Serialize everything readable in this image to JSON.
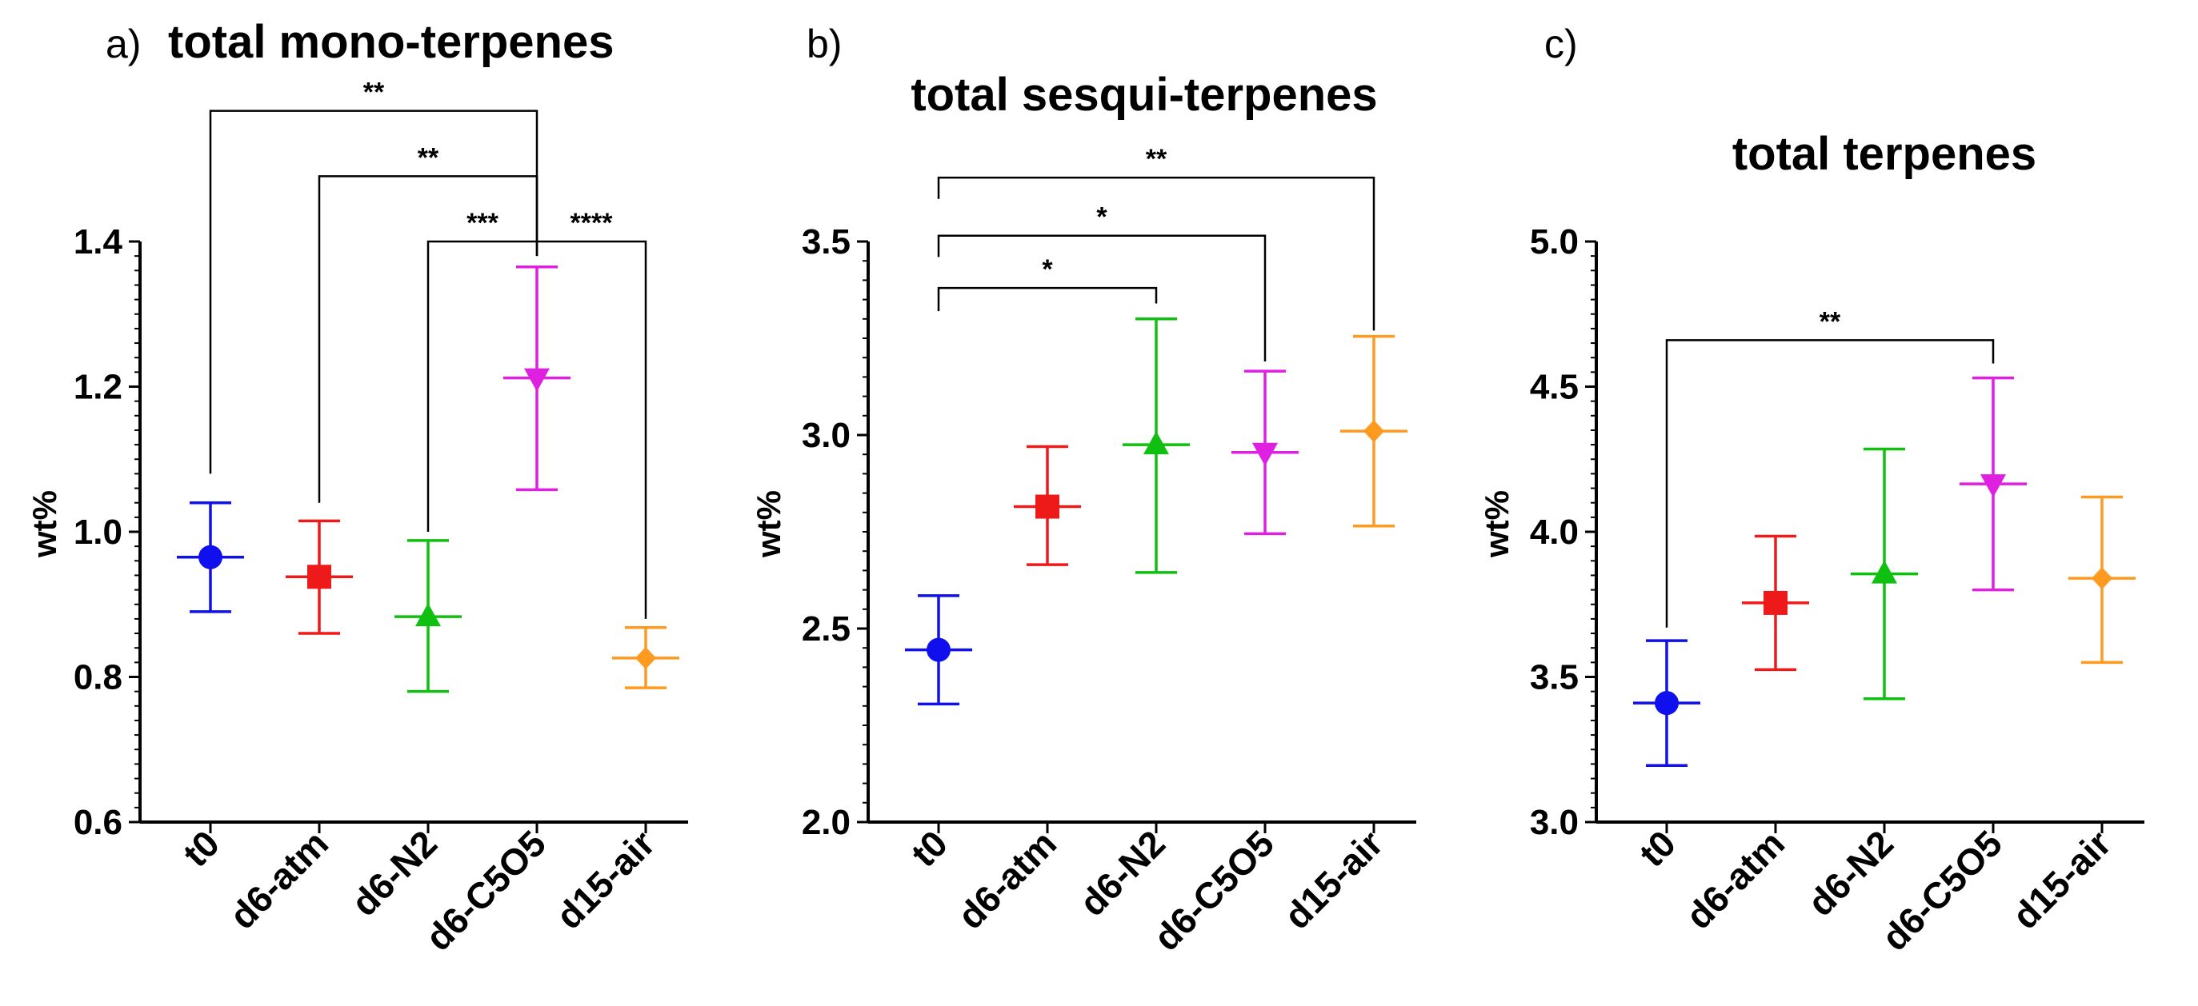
{
  "chart_data": [
    {
      "type": "scatter",
      "panel_letter": "a)",
      "title": "total mono-terpenes",
      "ylabel": "wt%",
      "ylim": [
        0.6,
        1.4
      ],
      "yticks": [
        "0.6",
        "0.8",
        "1.0",
        "1.2",
        "1.4"
      ],
      "categories": [
        "t0",
        "d6-atm",
        "d6-N2",
        "d6-C5O5",
        "d15-air"
      ],
      "points": [
        {
          "category": "t0",
          "mean": 0.965,
          "low": 0.89,
          "high": 1.04,
          "color": "#1010ee",
          "marker": "circle"
        },
        {
          "category": "d6-atm",
          "mean": 0.938,
          "low": 0.86,
          "high": 1.015,
          "color": "#ee1a1a",
          "marker": "square"
        },
        {
          "category": "d6-N2",
          "mean": 0.883,
          "low": 0.78,
          "high": 0.988,
          "color": "#10c010",
          "marker": "triangle-up"
        },
        {
          "category": "d6-C5O5",
          "mean": 1.212,
          "low": 1.058,
          "high": 1.365,
          "color": "#e020e0",
          "marker": "triangle-down"
        },
        {
          "category": "d15-air",
          "mean": 0.826,
          "low": 0.785,
          "high": 0.868,
          "color": "#ff9a20",
          "marker": "diamond"
        }
      ],
      "significance": [
        {
          "from": "t0",
          "to": "d6-C5O5",
          "label": "**",
          "y": 1.58,
          "from_end": 1.08,
          "to_end": 1.4
        },
        {
          "from": "d6-atm",
          "to": "d6-C5O5",
          "label": "**",
          "y": 1.49,
          "from_end": 1.04,
          "to_end": 1.4
        },
        {
          "from": "d6-N2",
          "to": "d6-C5O5",
          "label": "***",
          "y": 1.4,
          "from_end": 1.0,
          "to_end": 1.38
        },
        {
          "from": "d6-C5O5",
          "to": "d15-air",
          "label": "****",
          "y": 1.4,
          "from_end": 1.38,
          "to_end": 0.88
        }
      ]
    },
    {
      "type": "scatter",
      "panel_letter": "b)",
      "title": "total sesqui-terpenes",
      "ylabel": "wt%",
      "ylim": [
        2.0,
        3.5
      ],
      "yticks": [
        "2.0",
        "2.5",
        "3.0",
        "3.5"
      ],
      "categories": [
        "t0",
        "d6-atm",
        "d6-N2",
        "d6-C5O5",
        "d15-air"
      ],
      "points": [
        {
          "category": "t0",
          "mean": 2.445,
          "low": 2.305,
          "high": 2.585,
          "color": "#1010ee",
          "marker": "circle"
        },
        {
          "category": "d6-atm",
          "mean": 2.815,
          "low": 2.665,
          "high": 2.97,
          "color": "#ee1a1a",
          "marker": "square"
        },
        {
          "category": "d6-N2",
          "mean": 2.975,
          "low": 2.645,
          "high": 3.3,
          "color": "#10c010",
          "marker": "triangle-up"
        },
        {
          "category": "d6-C5O5",
          "mean": 2.955,
          "low": 2.745,
          "high": 3.165,
          "color": "#e020e0",
          "marker": "triangle-down"
        },
        {
          "category": "d15-air",
          "mean": 3.01,
          "low": 2.765,
          "high": 3.255,
          "color": "#ff9a20",
          "marker": "diamond"
        }
      ],
      "significance": [
        {
          "from": "t0",
          "to": "d15-air",
          "label": "**",
          "y": 3.665,
          "from_end": 3.61,
          "to_end": 3.27
        },
        {
          "from": "t0",
          "to": "d6-C5O5",
          "label": "*",
          "y": 3.515,
          "from_end": 3.46,
          "to_end": 3.19
        },
        {
          "from": "t0",
          "to": "d6-N2",
          "label": "*",
          "y": 3.38,
          "from_end": 3.32,
          "to_end": 3.34
        }
      ]
    },
    {
      "type": "scatter",
      "panel_letter": "c)",
      "title": "total terpenes",
      "ylabel": "wt%",
      "ylim": [
        3.0,
        5.0
      ],
      "yticks": [
        "3.0",
        "3.5",
        "4.0",
        "4.5",
        "5.0"
      ],
      "categories": [
        "t0",
        "d6-atm",
        "d6-N2",
        "d6-C5O5",
        "d15-air"
      ],
      "points": [
        {
          "category": "t0",
          "mean": 3.41,
          "low": 3.195,
          "high": 3.625,
          "color": "#1010ee",
          "marker": "circle"
        },
        {
          "category": "d6-atm",
          "mean": 3.755,
          "low": 3.525,
          "high": 3.985,
          "color": "#ee1a1a",
          "marker": "square"
        },
        {
          "category": "d6-N2",
          "mean": 3.855,
          "low": 3.425,
          "high": 4.285,
          "color": "#10c010",
          "marker": "triangle-up"
        },
        {
          "category": "d6-C5O5",
          "mean": 4.165,
          "low": 3.8,
          "high": 4.53,
          "color": "#e020e0",
          "marker": "triangle-down"
        },
        {
          "category": "d15-air",
          "mean": 3.84,
          "low": 3.55,
          "high": 4.12,
          "color": "#ff9a20",
          "marker": "diamond"
        }
      ],
      "significance": [
        {
          "from": "t0",
          "to": "d6-C5O5",
          "label": "**",
          "y": 4.66,
          "from_end": 3.67,
          "to_end": 4.58
        }
      ]
    }
  ]
}
